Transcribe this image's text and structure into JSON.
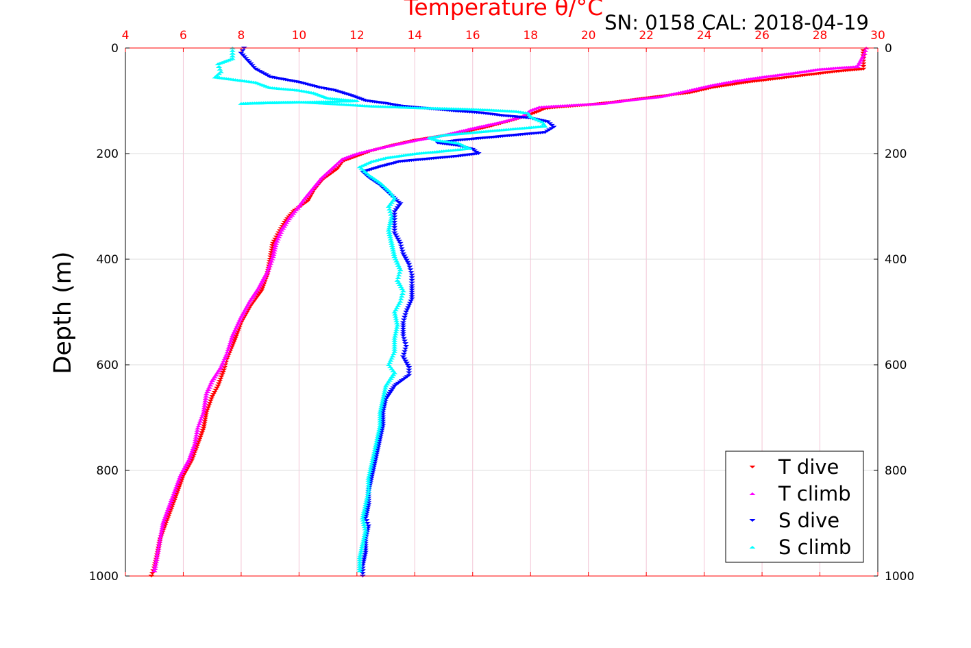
{
  "chart_data": {
    "type": "scatter",
    "title": "Temperature θ/°C",
    "subtitle": "SN: 0158  CAL: 2018-04-19",
    "xlabel": "Temperature θ/°C",
    "ylabel": "Depth (m)",
    "xlim": [
      4,
      30
    ],
    "ylim": [
      1000,
      0
    ],
    "xticks": [
      "4",
      "6",
      "8",
      "10",
      "12",
      "14",
      "16",
      "18",
      "20",
      "22",
      "24",
      "26",
      "28",
      "30"
    ],
    "yticks": [
      "0",
      "200",
      "400",
      "600",
      "800",
      "1000"
    ],
    "grid": true,
    "legend_position": "bottom-right",
    "colors": {
      "axis_top": "#ff0000",
      "grid_x": "#f2c4d4",
      "grid_y": "#dddddd",
      "t_dive": "#ff0000",
      "t_climb": "#ff00ff",
      "s_dive": "#0000ff",
      "s_climb": "#00ffff"
    },
    "series": [
      {
        "name": "T dive",
        "marker": "triangle-down",
        "color": "#ff0000",
        "points": [
          [
            29.5,
            5
          ],
          [
            29.5,
            20
          ],
          [
            29.5,
            40
          ],
          [
            28.5,
            45
          ],
          [
            27,
            55
          ],
          [
            25.5,
            65
          ],
          [
            24.3,
            75
          ],
          [
            23.5,
            85
          ],
          [
            22,
            95
          ],
          [
            21,
            102
          ],
          [
            20,
            108
          ],
          [
            19,
            112
          ],
          [
            18.5,
            115
          ],
          [
            18.2,
            122
          ],
          [
            17.5,
            135
          ],
          [
            16.5,
            150
          ],
          [
            15.5,
            162
          ],
          [
            14,
            175
          ],
          [
            13.2,
            185
          ],
          [
            12.5,
            195
          ],
          [
            12,
            205
          ],
          [
            11.5,
            215
          ],
          [
            11.3,
            230
          ],
          [
            10.8,
            250
          ],
          [
            10.5,
            270
          ],
          [
            10.3,
            290
          ],
          [
            9.8,
            310
          ],
          [
            9.5,
            330
          ],
          [
            9.3,
            350
          ],
          [
            9.1,
            370
          ],
          [
            9,
            400
          ],
          [
            8.9,
            430
          ],
          [
            8.7,
            460
          ],
          [
            8.3,
            490
          ],
          [
            8,
            520
          ],
          [
            7.8,
            550
          ],
          [
            7.5,
            590
          ],
          [
            7.4,
            610
          ],
          [
            7.2,
            640
          ],
          [
            7,
            660
          ],
          [
            6.8,
            690
          ],
          [
            6.7,
            720
          ],
          [
            6.5,
            750
          ],
          [
            6.3,
            780
          ],
          [
            6,
            810
          ],
          [
            5.8,
            840
          ],
          [
            5.6,
            870
          ],
          [
            5.4,
            900
          ],
          [
            5.2,
            930
          ],
          [
            5.1,
            960
          ],
          [
            5,
            985
          ],
          [
            4.9,
            1000
          ]
        ]
      },
      {
        "name": "T climb",
        "marker": "triangle-up",
        "color": "#ff00ff",
        "points": [
          [
            29.6,
            0
          ],
          [
            29.5,
            15
          ],
          [
            29.3,
            35
          ],
          [
            28,
            40
          ],
          [
            27,
            48
          ],
          [
            26,
            55
          ],
          [
            25,
            63
          ],
          [
            24.3,
            70
          ],
          [
            23.5,
            80
          ],
          [
            22.5,
            92
          ],
          [
            21.5,
            98
          ],
          [
            20.5,
            105
          ],
          [
            19.5,
            108
          ],
          [
            18.8,
            110
          ],
          [
            18.3,
            112
          ],
          [
            18,
            118
          ],
          [
            17.7,
            130
          ],
          [
            17,
            140
          ],
          [
            16,
            152
          ],
          [
            15,
            165
          ],
          [
            14,
            175
          ],
          [
            13.3,
            183
          ],
          [
            12.5,
            193
          ],
          [
            12,
            200
          ],
          [
            11.5,
            210
          ],
          [
            11.2,
            225
          ],
          [
            10.8,
            245
          ],
          [
            10.5,
            265
          ],
          [
            10.2,
            285
          ],
          [
            10,
            300
          ],
          [
            9.7,
            320
          ],
          [
            9.4,
            345
          ],
          [
            9.2,
            370
          ],
          [
            9.1,
            395
          ],
          [
            8.9,
            425
          ],
          [
            8.6,
            455
          ],
          [
            8.3,
            480
          ],
          [
            8,
            510
          ],
          [
            7.7,
            545
          ],
          [
            7.5,
            580
          ],
          [
            7.3,
            605
          ],
          [
            7,
            630
          ],
          [
            6.8,
            655
          ],
          [
            6.7,
            690
          ],
          [
            6.5,
            720
          ],
          [
            6.4,
            750
          ],
          [
            6.2,
            780
          ],
          [
            5.9,
            810
          ],
          [
            5.7,
            840
          ],
          [
            5.5,
            870
          ],
          [
            5.3,
            900
          ],
          [
            5.2,
            930
          ],
          [
            5.1,
            960
          ],
          [
            5,
            990
          ]
        ]
      },
      {
        "name": "S dive",
        "marker": "triangle-down",
        "color": "#0000ff",
        "points": [
          [
            8.1,
            0
          ],
          [
            8,
            10
          ],
          [
            8.5,
            40
          ],
          [
            9,
            55
          ],
          [
            10,
            65
          ],
          [
            10.7,
            75
          ],
          [
            11.2,
            80
          ],
          [
            11.8,
            90
          ],
          [
            12.3,
            100
          ],
          [
            13,
            105
          ],
          [
            13.5,
            110
          ],
          [
            14.5,
            115
          ],
          [
            15.5,
            120
          ],
          [
            16.3,
            123
          ],
          [
            17,
            128
          ],
          [
            18,
            133
          ],
          [
            18.6,
            140
          ],
          [
            18.8,
            150
          ],
          [
            18.5,
            160
          ],
          [
            17.5,
            165
          ],
          [
            16.5,
            170
          ],
          [
            15.5,
            175
          ],
          [
            14.8,
            180
          ],
          [
            15.5,
            185
          ],
          [
            16,
            192
          ],
          [
            16.2,
            200
          ],
          [
            15.5,
            205
          ],
          [
            14.5,
            210
          ],
          [
            13.5,
            215
          ],
          [
            12.8,
            225
          ],
          [
            12.2,
            235
          ],
          [
            12.4,
            245
          ],
          [
            12.8,
            260
          ],
          [
            13.2,
            280
          ],
          [
            13.5,
            295
          ],
          [
            13.3,
            310
          ],
          [
            13.3,
            330
          ],
          [
            13.3,
            350
          ],
          [
            13.5,
            370
          ],
          [
            13.6,
            390
          ],
          [
            13.8,
            410
          ],
          [
            13.9,
            430
          ],
          [
            13.9,
            450
          ],
          [
            13.9,
            475
          ],
          [
            13.7,
            500
          ],
          [
            13.6,
            520
          ],
          [
            13.6,
            545
          ],
          [
            13.7,
            565
          ],
          [
            13.6,
            585
          ],
          [
            13.8,
            605
          ],
          [
            13.8,
            620
          ],
          [
            13.3,
            640
          ],
          [
            13,
            665
          ],
          [
            12.9,
            690
          ],
          [
            12.9,
            715
          ],
          [
            12.8,
            740
          ],
          [
            12.7,
            765
          ],
          [
            12.6,
            790
          ],
          [
            12.5,
            815
          ],
          [
            12.4,
            840
          ],
          [
            12.4,
            865
          ],
          [
            12.3,
            890
          ],
          [
            12.4,
            905
          ],
          [
            12.3,
            930
          ],
          [
            12.3,
            955
          ],
          [
            12.2,
            980
          ],
          [
            12.2,
            1000
          ]
        ]
      },
      {
        "name": "S climb",
        "marker": "triangle-up",
        "color": "#00ffff",
        "points": [
          [
            7.7,
            0
          ],
          [
            7.7,
            20
          ],
          [
            7.2,
            30
          ],
          [
            7.3,
            45
          ],
          [
            7.1,
            55
          ],
          [
            7.8,
            60
          ],
          [
            8.5,
            65
          ],
          [
            9,
            75
          ],
          [
            10,
            80
          ],
          [
            10.5,
            85
          ],
          [
            11,
            95
          ],
          [
            12,
            100
          ],
          [
            8,
            105
          ],
          [
            9,
            103
          ],
          [
            10,
            102
          ],
          [
            11,
            105
          ],
          [
            12.5,
            110
          ],
          [
            14,
            113
          ],
          [
            15.5,
            115
          ],
          [
            16.5,
            117
          ],
          [
            17.5,
            120
          ],
          [
            17.9,
            123
          ],
          [
            18,
            130
          ],
          [
            18.4,
            140
          ],
          [
            18.5,
            148
          ],
          [
            17,
            155
          ],
          [
            16,
            160
          ],
          [
            15,
            165
          ],
          [
            14.5,
            170
          ],
          [
            14.8,
            175
          ],
          [
            15.5,
            180
          ],
          [
            15.9,
            190
          ],
          [
            15,
            195
          ],
          [
            14,
            200
          ],
          [
            13,
            208
          ],
          [
            12.5,
            215
          ],
          [
            12.1,
            225
          ],
          [
            12.4,
            240
          ],
          [
            12.8,
            255
          ],
          [
            13.1,
            270
          ],
          [
            13.3,
            285
          ],
          [
            13.1,
            300
          ],
          [
            13.2,
            320
          ],
          [
            13.1,
            345
          ],
          [
            13.2,
            370
          ],
          [
            13.3,
            395
          ],
          [
            13.5,
            420
          ],
          [
            13.4,
            440
          ],
          [
            13.6,
            460
          ],
          [
            13.5,
            480
          ],
          [
            13.3,
            500
          ],
          [
            13.4,
            525
          ],
          [
            13.3,
            550
          ],
          [
            13.3,
            575
          ],
          [
            13.1,
            600
          ],
          [
            13.3,
            615
          ],
          [
            13,
            640
          ],
          [
            12.9,
            665
          ],
          [
            12.8,
            690
          ],
          [
            12.8,
            715
          ],
          [
            12.7,
            740
          ],
          [
            12.6,
            765
          ],
          [
            12.5,
            790
          ],
          [
            12.4,
            815
          ],
          [
            12.4,
            840
          ],
          [
            12.3,
            865
          ],
          [
            12.2,
            890
          ],
          [
            12.3,
            915
          ],
          [
            12.2,
            940
          ],
          [
            12.1,
            965
          ],
          [
            12.1,
            990
          ]
        ]
      }
    ]
  }
}
